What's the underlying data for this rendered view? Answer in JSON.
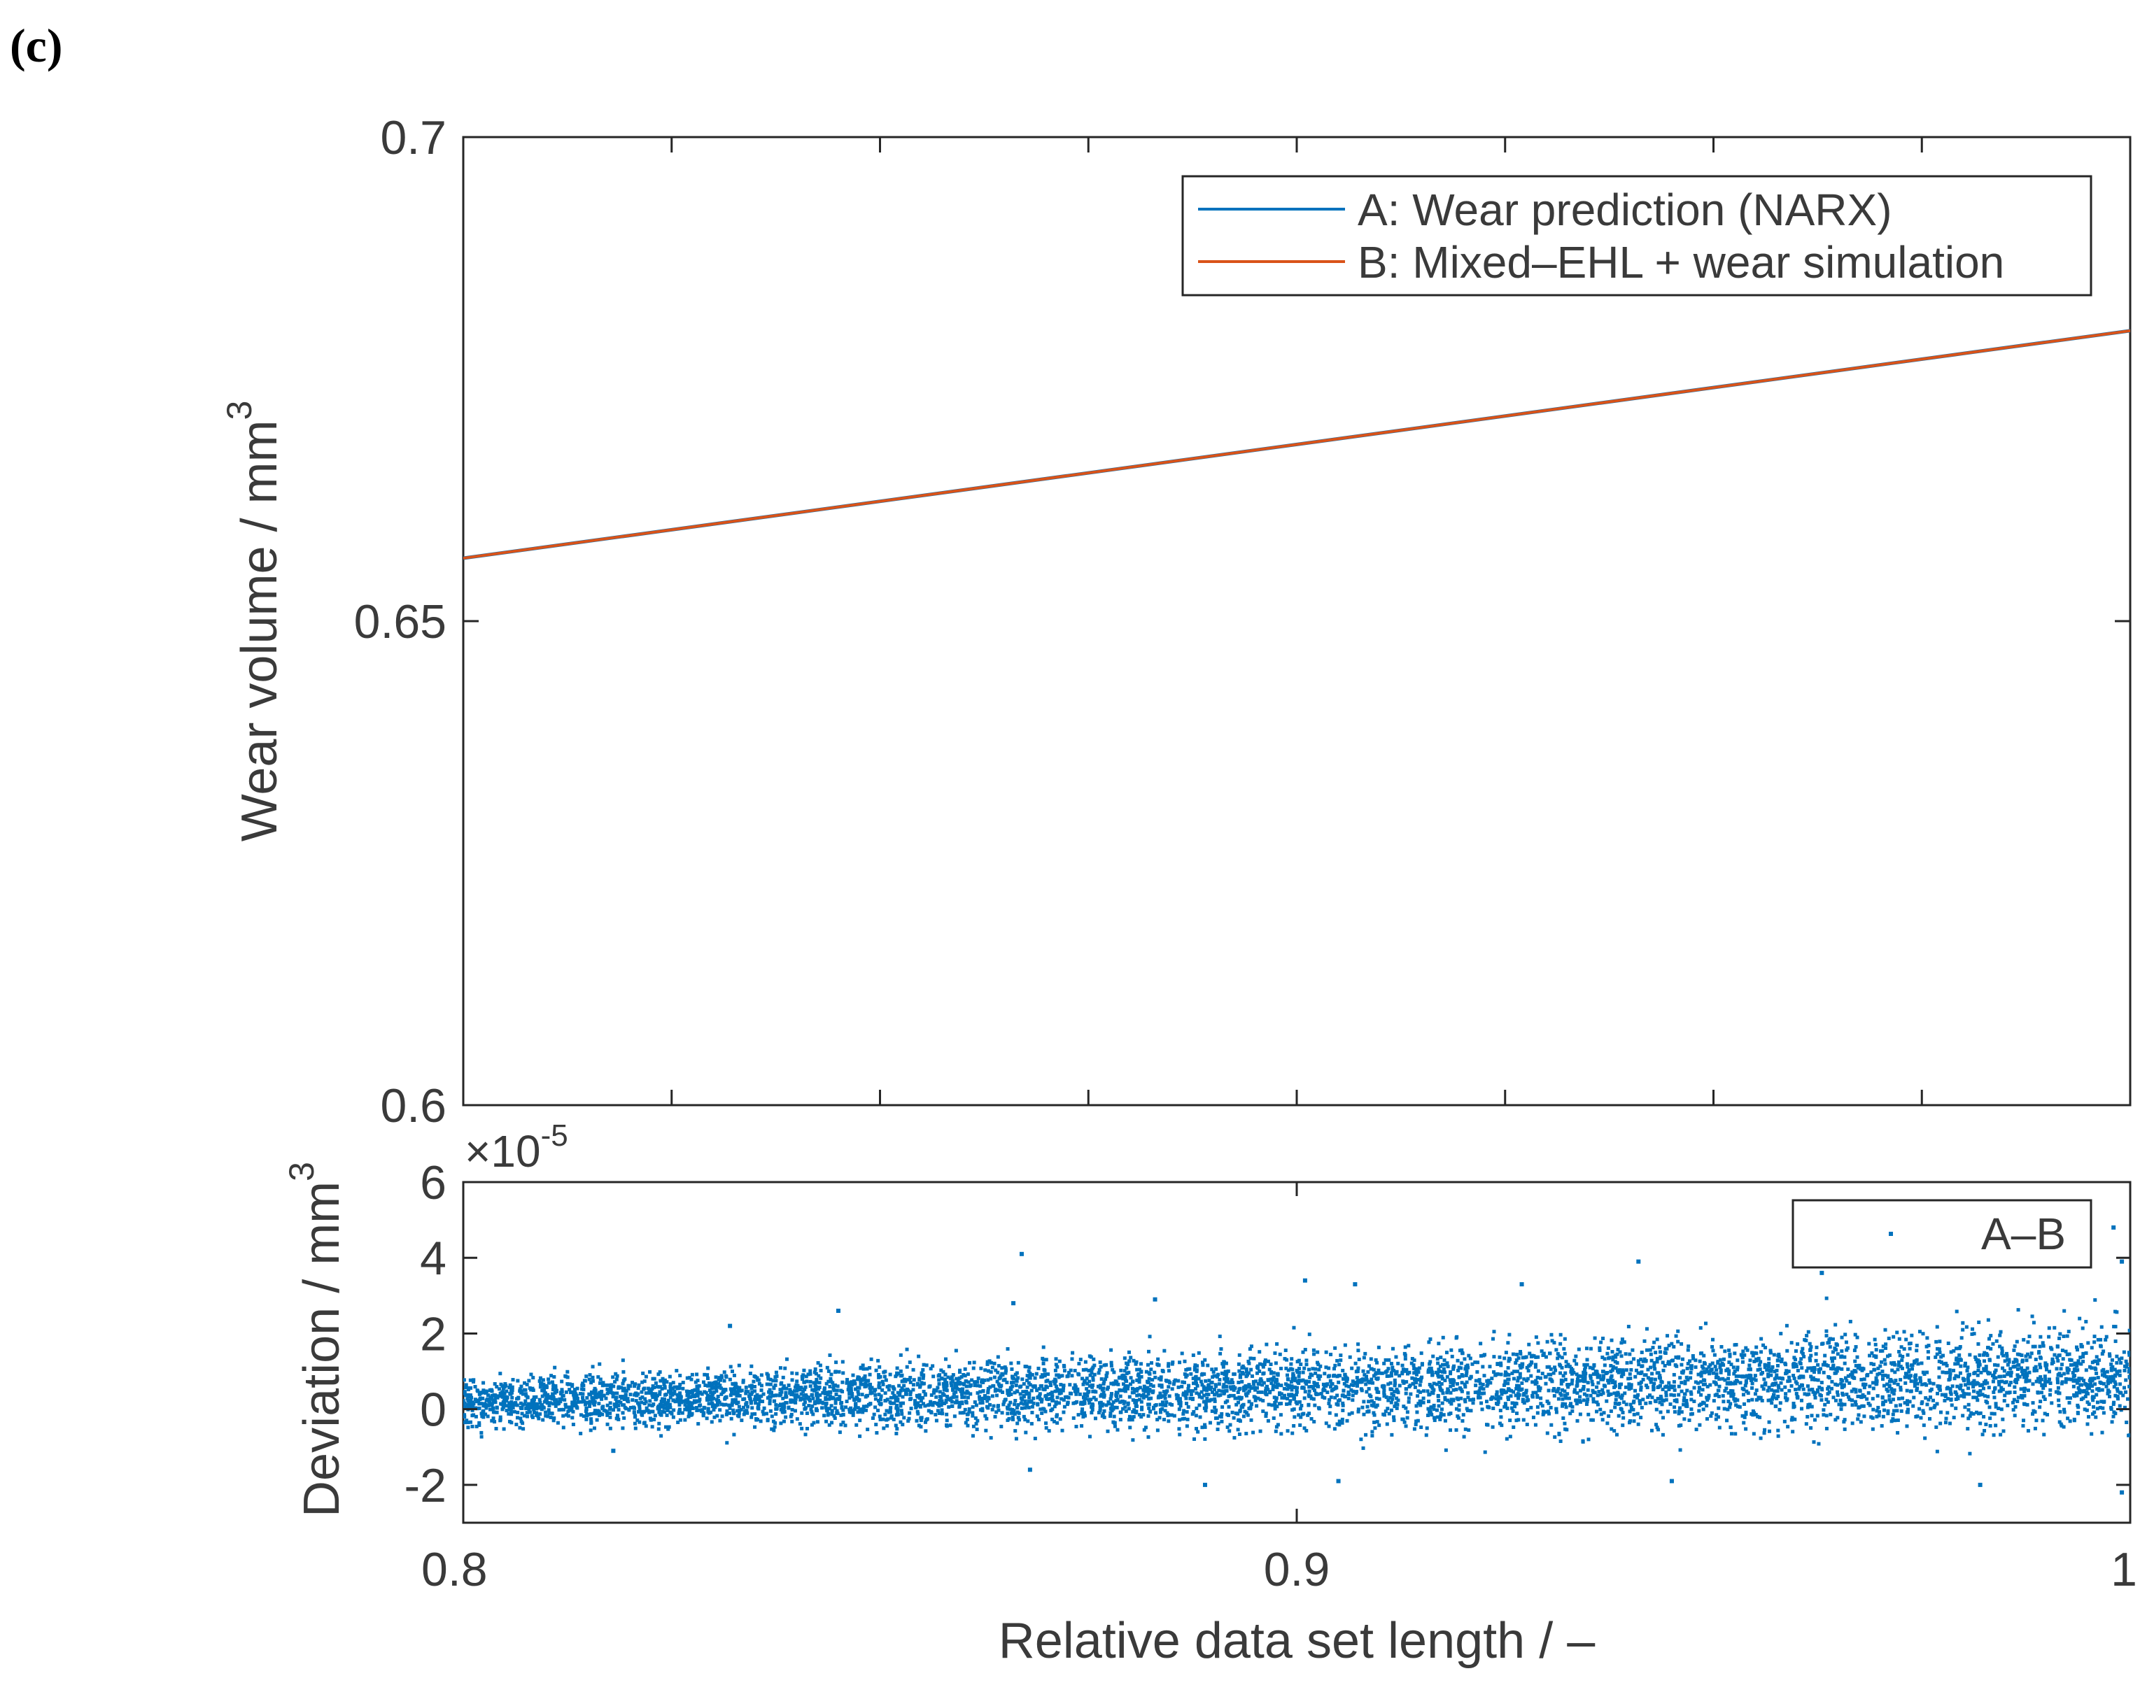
{
  "panel_label": "(c)",
  "colors": {
    "series_a": "#0072BD",
    "series_b": "#D95319",
    "deviation": "#0072BD",
    "axis": "#262626",
    "text": "#3a3a3a"
  },
  "chart_data": [
    {
      "type": "line",
      "title": "",
      "xlabel": "",
      "ylabel": "Wear volume / mm",
      "ylabel_sup": "3",
      "xlim": [
        0.8,
        1.0
      ],
      "ylim": [
        0.6,
        0.7
      ],
      "yticks": [
        0.6,
        0.65,
        0.7
      ],
      "ytick_labels": [
        "0.6",
        "0.65",
        "0.7"
      ],
      "xticks": [
        0.8,
        0.825,
        0.85,
        0.875,
        0.9,
        0.925,
        0.95,
        0.975,
        1.0
      ],
      "legend_position": "top-right",
      "series": [
        {
          "name": "A: Wear prediction (NARX)",
          "x": [
            0.8,
            1.0
          ],
          "y": [
            0.6565,
            0.68
          ]
        },
        {
          "name": "B: Mixed–EHL + wear simulation",
          "x": [
            0.8,
            1.0
          ],
          "y": [
            0.6565,
            0.68
          ]
        }
      ]
    },
    {
      "type": "scatter",
      "title": "",
      "xlabel": "Relative data set length / –",
      "ylabel": "Deviation / mm",
      "ylabel_sup": "3",
      "xlim": [
        0.8,
        1.0
      ],
      "ylim": [
        -3,
        6
      ],
      "y_multiplier": "×10",
      "y_multiplier_exp": "-5",
      "yticks": [
        -2,
        0,
        2,
        4,
        6
      ],
      "ytick_labels": [
        "-2",
        "0",
        "2",
        "4",
        "6"
      ],
      "xticks": [
        0.8,
        0.9,
        1.0
      ],
      "xtick_labels": [
        "0.8",
        "0.9",
        "1"
      ],
      "legend_position": "top-right",
      "series": [
        {
          "name": "A–B",
          "point_count": 6000,
          "distribution": {
            "x_range": [
              0.8,
              1.0
            ],
            "center_start": 0.2,
            "center_end": 0.9,
            "spread_start": 0.5,
            "spread_end": 1.1
          },
          "outliers": [
            [
              0.867,
              4.1
            ],
            [
              0.845,
              2.6
            ],
            [
              0.832,
              2.2
            ],
            [
              0.866,
              2.8
            ],
            [
              0.883,
              2.9
            ],
            [
              0.901,
              3.4
            ],
            [
              0.907,
              3.3
            ],
            [
              0.927,
              3.3
            ],
            [
              0.941,
              3.9
            ],
            [
              0.963,
              3.6
            ],
            [
              0.998,
              4.8
            ],
            [
              0.999,
              3.9
            ],
            [
              0.868,
              -1.6
            ],
            [
              0.818,
              -1.1
            ],
            [
              0.889,
              -2.0
            ],
            [
              0.905,
              -1.9
            ],
            [
              0.945,
              -1.9
            ],
            [
              0.982,
              -2.0
            ],
            [
              0.999,
              -2.2
            ]
          ]
        }
      ]
    }
  ]
}
